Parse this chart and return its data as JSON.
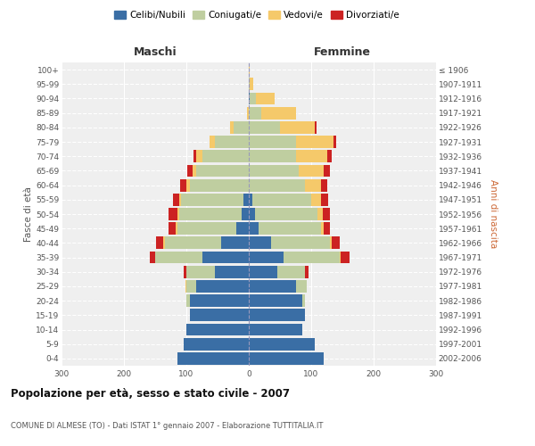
{
  "age_groups": [
    "0-4",
    "5-9",
    "10-14",
    "15-19",
    "20-24",
    "25-29",
    "30-34",
    "35-39",
    "40-44",
    "45-49",
    "50-54",
    "55-59",
    "60-64",
    "65-69",
    "70-74",
    "75-79",
    "80-84",
    "85-89",
    "90-94",
    "95-99",
    "100+"
  ],
  "birth_years": [
    "2002-2006",
    "1997-2001",
    "1992-1996",
    "1987-1991",
    "1982-1986",
    "1977-1981",
    "1972-1976",
    "1967-1971",
    "1962-1966",
    "1957-1961",
    "1952-1956",
    "1947-1951",
    "1942-1946",
    "1937-1941",
    "1932-1936",
    "1927-1931",
    "1922-1926",
    "1917-1921",
    "1912-1916",
    "1907-1911",
    "≤ 1906"
  ],
  "males": {
    "celibe": [
      115,
      105,
      100,
      95,
      95,
      85,
      55,
      75,
      45,
      20,
      12,
      8,
      0,
      0,
      0,
      0,
      0,
      0,
      0,
      0,
      0
    ],
    "coniugato": [
      0,
      0,
      0,
      0,
      5,
      15,
      45,
      75,
      90,
      95,
      100,
      100,
      95,
      85,
      75,
      55,
      25,
      0,
      0,
      0,
      0
    ],
    "vedovo": [
      0,
      0,
      0,
      0,
      0,
      2,
      0,
      0,
      2,
      2,
      2,
      3,
      5,
      5,
      10,
      8,
      5,
      3,
      0,
      0,
      0
    ],
    "divorziato": [
      0,
      0,
      0,
      0,
      0,
      0,
      5,
      8,
      12,
      12,
      15,
      10,
      10,
      8,
      3,
      0,
      0,
      0,
      0,
      0,
      0
    ]
  },
  "females": {
    "nubile": [
      120,
      105,
      85,
      90,
      85,
      75,
      45,
      55,
      35,
      15,
      10,
      5,
      0,
      0,
      0,
      0,
      0,
      0,
      2,
      0,
      0
    ],
    "coniugata": [
      0,
      0,
      0,
      0,
      5,
      18,
      45,
      90,
      95,
      100,
      100,
      95,
      90,
      80,
      75,
      75,
      50,
      20,
      10,
      2,
      0
    ],
    "vedova": [
      0,
      0,
      0,
      0,
      0,
      0,
      0,
      2,
      3,
      5,
      8,
      15,
      25,
      40,
      50,
      60,
      55,
      55,
      30,
      5,
      2
    ],
    "divorziata": [
      0,
      0,
      0,
      0,
      0,
      0,
      5,
      15,
      12,
      10,
      12,
      12,
      10,
      10,
      8,
      5,
      3,
      0,
      0,
      0,
      0
    ]
  },
  "colors": {
    "celibe": "#3A6EA5",
    "coniugato": "#BFCEA0",
    "vedovo": "#F5C96A",
    "divorziato": "#CC2222"
  },
  "xlim": 300,
  "title": "Popolazione per età, sesso e stato civile - 2007",
  "subtitle": "COMUNE DI ALMESE (TO) - Dati ISTAT 1° gennaio 2007 - Elaborazione TUTTITALIA.IT",
  "ylabel_left": "Fasce di età",
  "ylabel_right": "Anni di nascita",
  "xlabel_left": "Maschi",
  "xlabel_right": "Femmine",
  "legend_labels": [
    "Celibi/Nubili",
    "Coniugati/e",
    "Vedovi/e",
    "Divorziati/e"
  ],
  "background_color": "#FFFFFF",
  "plot_bg_color": "#EFEFEF"
}
